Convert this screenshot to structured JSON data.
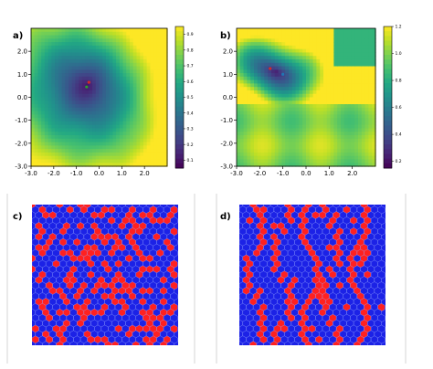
{
  "panels": {
    "a": "a)",
    "b": "b)",
    "c": "c)",
    "d": "d)"
  },
  "chart_data": [
    {
      "type": "heatmap",
      "panel": "a)",
      "colormap": "viridis",
      "xlim": [
        -3.0,
        3.0
      ],
      "ylim": [
        -3.0,
        3.0
      ],
      "xticks": [
        "-3.0",
        "-2.0",
        "-1.0",
        "0.0",
        "1.0",
        "2.0"
      ],
      "yticks": [
        "-3.0",
        "-2.0",
        "-1.0",
        "0.0",
        "1.0",
        "2.0"
      ],
      "colorbar": {
        "min": 0.05,
        "max": 0.95,
        "ticks": [
          "0.9",
          "0.8",
          "0.7",
          "0.6",
          "0.5",
          "0.4",
          "0.3",
          "0.2",
          "0.1"
        ]
      },
      "minimum": [
        -0.5,
        0.5
      ],
      "markers": [
        {
          "x": -0.45,
          "y": 0.65,
          "color": "#d62728"
        },
        {
          "x": -0.55,
          "y": 0.45,
          "color": "#2ca02c"
        }
      ]
    },
    {
      "type": "heatmap",
      "panel": "b)",
      "colormap": "viridis",
      "xlim": [
        -3.0,
        3.0
      ],
      "ylim": [
        -3.0,
        3.0
      ],
      "xticks": [
        "-3.0",
        "-2.0",
        "-1.0",
        "0.0",
        "1.0",
        "2.0"
      ],
      "yticks": [
        "-3.0",
        "-2.0",
        "-1.0",
        "0.0",
        "1.0",
        "2.0"
      ],
      "colorbar": {
        "min": 0.15,
        "max": 1.2,
        "ticks": [
          "1.2",
          "1.0",
          "0.8",
          "0.6",
          "0.4",
          "0.2"
        ]
      },
      "minimum": [
        -1.5,
        1.2
      ],
      "markers": [
        {
          "x": -1.55,
          "y": 1.25,
          "color": "#d62728"
        },
        {
          "x": -1.0,
          "y": 1.0,
          "color": "#1f77b4"
        }
      ]
    },
    {
      "type": "heatmap",
      "panel": "c)",
      "lattice": "hexagonal",
      "colors": {
        "background": "#1c22e6",
        "occupied": "#ff2020"
      },
      "pattern": "random clusters"
    },
    {
      "type": "heatmap",
      "panel": "d)",
      "lattice": "hexagonal",
      "colors": {
        "background": "#1c22e6",
        "occupied": "#ff2020"
      },
      "pattern": "vertical stripes"
    }
  ]
}
